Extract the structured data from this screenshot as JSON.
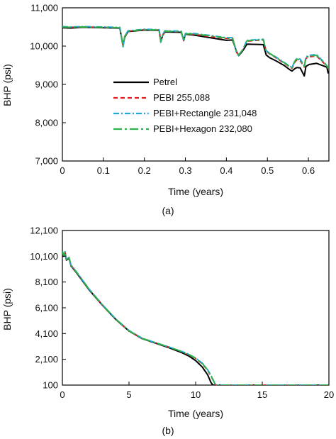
{
  "colors": {
    "petrel": "#000000",
    "pebi": "#e41a1c",
    "pebi_rectangle": "#1ea7e1",
    "pebi_hexagon": "#2fb24c"
  },
  "chart_data": [
    {
      "type": "line",
      "caption": "(a)",
      "xlabel": "Time (years)",
      "ylabel": "BHP (psi)",
      "xlim": [
        0,
        0.65
      ],
      "ylim": [
        7000,
        11000
      ],
      "xticks": [
        0,
        0.1,
        0.2,
        0.3,
        0.4,
        0.5,
        0.6
      ],
      "xtick_labels": [
        "0",
        "0.1",
        "0.2",
        "0.3",
        "0.4",
        "0.5",
        "0.6"
      ],
      "yticks": [
        7000,
        8000,
        9000,
        10000,
        11000
      ],
      "ytick_labels": [
        "7,000",
        "8,000",
        "9,000",
        "10,000",
        "11,000"
      ],
      "grid": false,
      "legend_position": "center",
      "series": [
        {
          "name": "Petrel",
          "color_key": "petrel",
          "style": "solid",
          "x": [
            0,
            0.02,
            0.05,
            0.1,
            0.14,
            0.148,
            0.152,
            0.16,
            0.2,
            0.236,
            0.24,
            0.245,
            0.25,
            0.29,
            0.296,
            0.3,
            0.32,
            0.36,
            0.4,
            0.415,
            0.425,
            0.43,
            0.44,
            0.45,
            0.49,
            0.497,
            0.505,
            0.52,
            0.54,
            0.555,
            0.56,
            0.568,
            0.572,
            0.58,
            0.59,
            0.594,
            0.602,
            0.62,
            0.645,
            0.648,
            0.65
          ],
          "y": [
            10480,
            10470,
            10490,
            10480,
            10470,
            10020,
            10230,
            10380,
            10420,
            10410,
            10120,
            10290,
            10370,
            10360,
            10150,
            10310,
            10290,
            10220,
            10150,
            10160,
            9850,
            9750,
            9880,
            10050,
            10040,
            9770,
            9700,
            9620,
            9500,
            9380,
            9350,
            9420,
            9440,
            9430,
            9220,
            9470,
            9520,
            9550,
            9450,
            9300,
            9350
          ]
        },
        {
          "name": "PEBI 255,088",
          "color_key": "pebi",
          "style": "dashed",
          "x": [
            0,
            0.02,
            0.05,
            0.1,
            0.14,
            0.148,
            0.152,
            0.16,
            0.2,
            0.236,
            0.24,
            0.245,
            0.25,
            0.29,
            0.296,
            0.3,
            0.32,
            0.36,
            0.4,
            0.415,
            0.425,
            0.43,
            0.44,
            0.45,
            0.49,
            0.497,
            0.505,
            0.52,
            0.54,
            0.555,
            0.56,
            0.568,
            0.572,
            0.58,
            0.59,
            0.594,
            0.602,
            0.62,
            0.645,
            0.648,
            0.65
          ],
          "y": [
            10500,
            10490,
            10500,
            10490,
            10480,
            10000,
            10250,
            10390,
            10430,
            10420,
            10110,
            10300,
            10390,
            10380,
            10140,
            10320,
            10310,
            10250,
            10200,
            10210,
            9830,
            9780,
            9900,
            10130,
            10160,
            9860,
            9800,
            9700,
            9560,
            9450,
            9420,
            9600,
            9640,
            9620,
            9450,
            9680,
            9720,
            9740,
            9480,
            9420,
            9430
          ]
        },
        {
          "name": "PEBI+Rectangle 231,048",
          "color_key": "pebi_rectangle",
          "style": "dashdot",
          "x": [
            0,
            0.02,
            0.05,
            0.1,
            0.14,
            0.148,
            0.152,
            0.16,
            0.2,
            0.236,
            0.24,
            0.245,
            0.25,
            0.29,
            0.296,
            0.3,
            0.32,
            0.36,
            0.4,
            0.415,
            0.425,
            0.43,
            0.44,
            0.45,
            0.49,
            0.497,
            0.505,
            0.52,
            0.54,
            0.555,
            0.56,
            0.568,
            0.572,
            0.58,
            0.59,
            0.594,
            0.602,
            0.62,
            0.645,
            0.648,
            0.65
          ],
          "y": [
            10510,
            10500,
            10510,
            10500,
            10490,
            9980,
            10260,
            10400,
            10440,
            10430,
            10100,
            10310,
            10400,
            10390,
            10130,
            10330,
            10330,
            10280,
            10220,
            10220,
            9820,
            9760,
            9910,
            10150,
            10180,
            9880,
            9820,
            9720,
            9580,
            9470,
            9440,
            9640,
            9680,
            9660,
            9480,
            9720,
            9760,
            9780,
            9500,
            9440,
            9450
          ]
        },
        {
          "name": "PEBI+Hexagon 232,080",
          "color_key": "pebi_hexagon",
          "style": "longdashdot",
          "x": [
            0,
            0.02,
            0.05,
            0.1,
            0.14,
            0.148,
            0.152,
            0.16,
            0.2,
            0.236,
            0.24,
            0.245,
            0.25,
            0.29,
            0.296,
            0.3,
            0.32,
            0.36,
            0.4,
            0.415,
            0.425,
            0.43,
            0.44,
            0.45,
            0.49,
            0.497,
            0.505,
            0.52,
            0.54,
            0.555,
            0.56,
            0.568,
            0.572,
            0.58,
            0.59,
            0.594,
            0.602,
            0.62,
            0.645,
            0.648,
            0.65
          ],
          "y": [
            10500,
            10490,
            10500,
            10490,
            10480,
            9990,
            10250,
            10390,
            10430,
            10420,
            10110,
            10300,
            10390,
            10380,
            10140,
            10320,
            10320,
            10270,
            10210,
            10210,
            9830,
            9770,
            9910,
            10140,
            10170,
            9870,
            9810,
            9710,
            9570,
            9460,
            9430,
            9630,
            9660,
            9640,
            9460,
            9700,
            9740,
            9760,
            9490,
            9430,
            9440
          ]
        }
      ]
    },
    {
      "type": "line",
      "caption": "(b)",
      "xlabel": "Time (years)",
      "ylabel": "BHP (psi)",
      "xlim": [
        0,
        20
      ],
      "ylim": [
        100,
        12100
      ],
      "xticks": [
        0,
        5,
        10,
        15,
        20
      ],
      "xtick_labels": [
        "0",
        "5",
        "10",
        "15",
        "20"
      ],
      "yticks": [
        100,
        2100,
        4100,
        6100,
        8100,
        10100,
        12100
      ],
      "ytick_labels": [
        "100",
        "2,100",
        "4,100",
        "6,100",
        "8,100",
        "10,100",
        "12,100"
      ],
      "grid": false,
      "series": [
        {
          "name": "Petrel",
          "color_key": "petrel",
          "style": "solid",
          "x": [
            0,
            0.1,
            0.2,
            0.3,
            0.5,
            0.65,
            1,
            2,
            3,
            4,
            5,
            6,
            7,
            8,
            9,
            9.5,
            10,
            10.5,
            10.9,
            11.15,
            11.3,
            12,
            15,
            20
          ],
          "y": [
            10480,
            10100,
            10400,
            9800,
            9950,
            9350,
            8900,
            7500,
            6300,
            5200,
            4300,
            3700,
            3350,
            3000,
            2600,
            2350,
            2000,
            1500,
            900,
            300,
            100,
            100,
            100,
            100
          ]
        },
        {
          "name": "PEBI 255,088",
          "color_key": "pebi",
          "style": "dashed",
          "x": [
            0,
            0.1,
            0.2,
            0.3,
            0.5,
            0.65,
            1,
            2,
            3,
            4,
            5,
            6,
            7,
            8,
            9,
            9.5,
            10,
            10.5,
            10.9,
            11.2,
            11.5,
            12,
            15,
            20
          ],
          "y": [
            10500,
            10150,
            10450,
            9850,
            10000,
            9400,
            8950,
            7550,
            6330,
            5230,
            4320,
            3720,
            3380,
            3050,
            2680,
            2450,
            2170,
            1750,
            1250,
            700,
            100,
            100,
            100,
            100
          ]
        },
        {
          "name": "PEBI+Rectangle 231,048",
          "color_key": "pebi_rectangle",
          "style": "dashdot",
          "x": [
            0,
            0.1,
            0.2,
            0.3,
            0.5,
            0.65,
            1,
            2,
            3,
            4,
            5,
            6,
            7,
            8,
            9,
            9.5,
            10,
            10.5,
            10.9,
            11.2,
            11.5,
            12,
            15,
            20
          ],
          "y": [
            10510,
            10160,
            10460,
            9860,
            10010,
            9410,
            8960,
            7560,
            6340,
            5240,
            4330,
            3730,
            3390,
            3060,
            2700,
            2480,
            2200,
            1800,
            1300,
            750,
            100,
            100,
            100,
            100
          ]
        },
        {
          "name": "PEBI+Hexagon 232,080",
          "color_key": "pebi_hexagon",
          "style": "longdashdot",
          "x": [
            0,
            0.1,
            0.2,
            0.3,
            0.5,
            0.65,
            1,
            2,
            3,
            4,
            5,
            6,
            7,
            8,
            9,
            9.5,
            10,
            10.5,
            10.9,
            11.2,
            11.5,
            12,
            15,
            20
          ],
          "y": [
            10500,
            10150,
            10450,
            9850,
            10000,
            9400,
            8950,
            7550,
            6330,
            5230,
            4320,
            3720,
            3380,
            3050,
            2690,
            2470,
            2190,
            1780,
            1280,
            730,
            100,
            100,
            100,
            100
          ]
        }
      ]
    }
  ]
}
